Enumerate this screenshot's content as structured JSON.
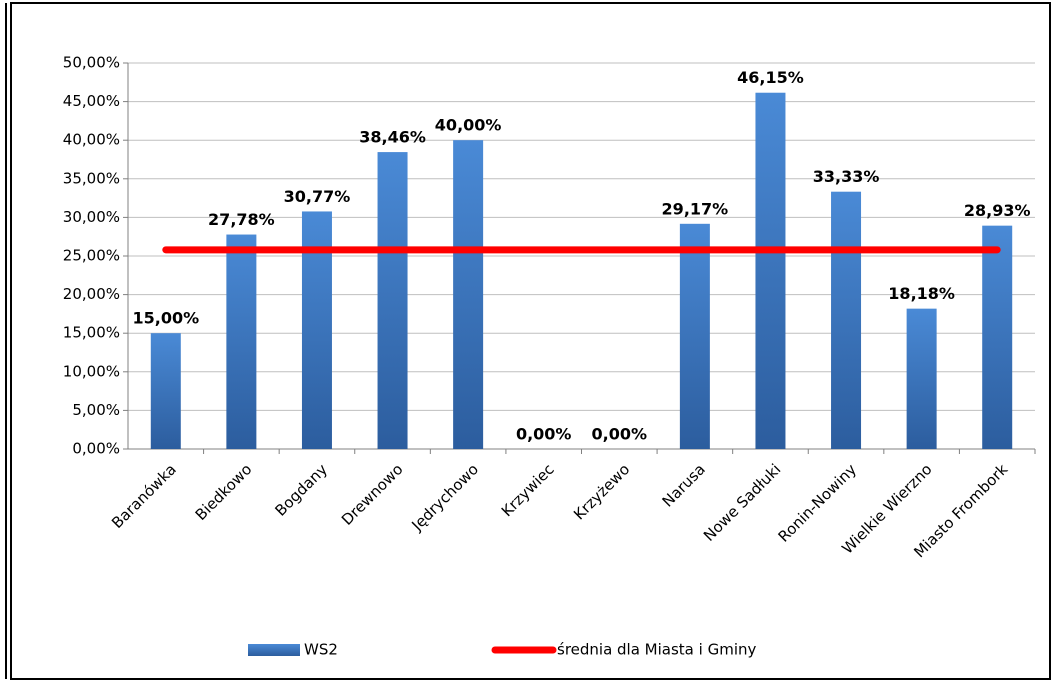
{
  "chart_data": {
    "type": "bar",
    "categories": [
      "Baranówka",
      "Biedkowo",
      "Bogdany",
      "Drewnowo",
      "Jędrychowo",
      "Krzywiec",
      "Krzyżewo",
      "Narusa",
      "Nowe Sadłuki",
      "Ronin-Nowiny",
      "Wielkie Wierzno",
      "Miasto Frombork"
    ],
    "series": [
      {
        "name": "WS2",
        "color": "#3a75c4",
        "type": "bar",
        "values": [
          15.0,
          27.78,
          30.77,
          38.46,
          40.0,
          0.0,
          0.0,
          29.17,
          46.15,
          33.33,
          18.18,
          28.93
        ],
        "value_labels": [
          "15,00%",
          "27,78%",
          "30,77%",
          "38,46%",
          "40,00%",
          "0,00%",
          "0,00%",
          "29,17%",
          "46,15%",
          "33,33%",
          "18,18%",
          "28,93%"
        ]
      },
      {
        "name": "średnia dla Miasta i Gminy",
        "color": "#ff0000",
        "type": "line",
        "values": [
          25.8,
          25.8,
          25.8,
          25.8,
          25.8,
          25.8,
          25.8,
          25.8,
          25.8,
          25.8,
          25.8,
          25.8
        ]
      }
    ],
    "ylim": [
      0,
      50
    ],
    "yticks": [
      {
        "value": 0,
        "label": "0,00%"
      },
      {
        "value": 5,
        "label": "5,00%"
      },
      {
        "value": 10,
        "label": "10,00%"
      },
      {
        "value": 15,
        "label": "15,00%"
      },
      {
        "value": 20,
        "label": "20,00%"
      },
      {
        "value": 25,
        "label": "25,00%"
      },
      {
        "value": 30,
        "label": "30,00%"
      },
      {
        "value": 35,
        "label": "35,00%"
      },
      {
        "value": 40,
        "label": "40,00%"
      },
      {
        "value": 45,
        "label": "45,00%"
      },
      {
        "value": 50,
        "label": "50,00%"
      }
    ],
    "grid": true,
    "legend": "bottom"
  }
}
